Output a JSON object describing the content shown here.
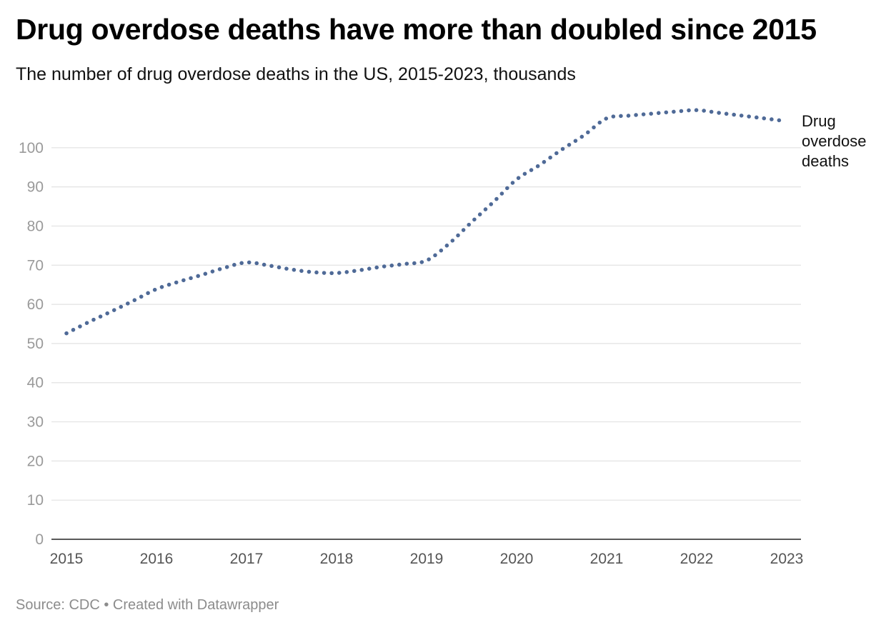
{
  "header": {
    "title": "Drug overdose deaths have more than doubled since 2015",
    "subtitle": "The number of drug overdose deaths in the US, 2015-2023, thousands"
  },
  "footer": {
    "source": "Source: CDC • Created with Datawrapper"
  },
  "colors": {
    "series": "#4f6a97",
    "grid": "#e2e2e2",
    "axis": "#222222"
  },
  "chart_data": {
    "type": "line",
    "title": "Drug overdose deaths have more than doubled since 2015",
    "subtitle": "The number of drug overdose deaths in the US, 2015-2023, thousands",
    "xlabel": "",
    "ylabel": "",
    "ylim": [
      0,
      110
    ],
    "xlim": [
      2015,
      2023
    ],
    "grid": true,
    "line_style": "dotted",
    "yticks": [
      "0",
      "10",
      "20",
      "30",
      "40",
      "50",
      "60",
      "70",
      "80",
      "90",
      "100"
    ],
    "xticks": [
      "2015",
      "2016",
      "2017",
      "2018",
      "2019",
      "2020",
      "2021",
      "2022",
      "2023"
    ],
    "series": [
      {
        "name": "Drug overdose deaths",
        "label_lines": [
          "Drug",
          "overdose",
          "deaths"
        ],
        "points": [
          [
            2015.0,
            52.6
          ],
          [
            2015.25,
            55.5
          ],
          [
            2015.5,
            58.2
          ],
          [
            2015.75,
            61.0
          ],
          [
            2016.0,
            63.9
          ],
          [
            2016.25,
            65.8
          ],
          [
            2016.5,
            67.5
          ],
          [
            2016.75,
            69.3
          ],
          [
            2017.0,
            70.7
          ],
          [
            2017.25,
            69.9
          ],
          [
            2017.5,
            68.9
          ],
          [
            2017.75,
            68.2
          ],
          [
            2018.0,
            68.0
          ],
          [
            2018.25,
            68.7
          ],
          [
            2018.5,
            69.6
          ],
          [
            2018.75,
            70.3
          ],
          [
            2019.0,
            71.2
          ],
          [
            2019.25,
            75.5
          ],
          [
            2019.5,
            81.0
          ],
          [
            2019.75,
            86.3
          ],
          [
            2020.0,
            91.9
          ],
          [
            2020.25,
            95.5
          ],
          [
            2020.5,
            99.5
          ],
          [
            2020.75,
            103.2
          ],
          [
            2021.0,
            107.5
          ],
          [
            2021.25,
            108.2
          ],
          [
            2021.5,
            108.7
          ],
          [
            2021.75,
            109.2
          ],
          [
            2022.0,
            109.6
          ],
          [
            2022.25,
            108.9
          ],
          [
            2022.5,
            108.2
          ],
          [
            2022.75,
            107.5
          ],
          [
            2022.92,
            107.0
          ]
        ]
      }
    ]
  }
}
